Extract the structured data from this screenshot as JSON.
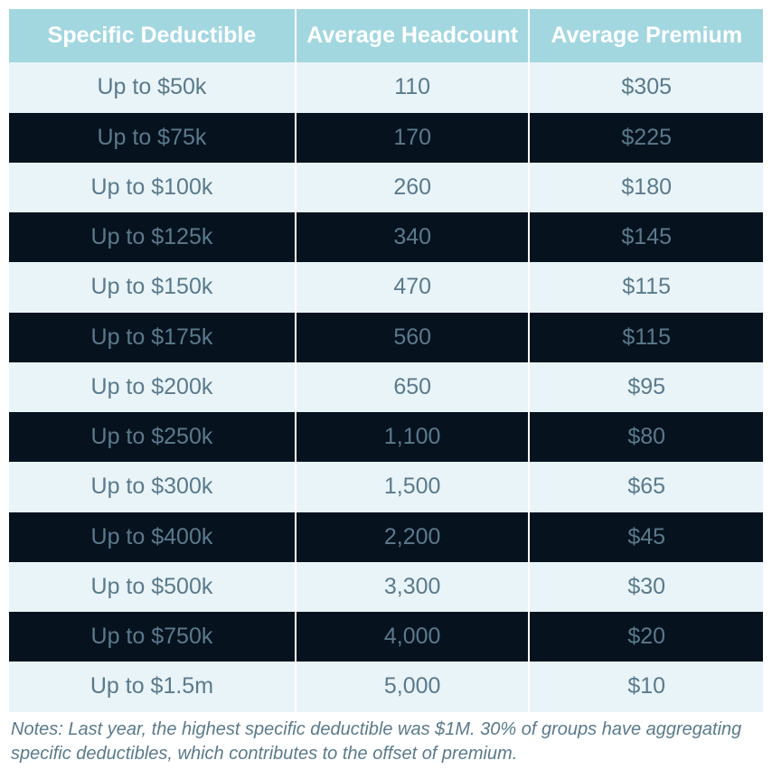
{
  "table": {
    "type": "table",
    "background_color": "#ffffff",
    "header": {
      "background_color": "#a3d7e0",
      "text_color": "#ffffff",
      "font_size_pt": 19,
      "font_weight": 700,
      "row_border_color": "#ffffff"
    },
    "columns": [
      {
        "key": "deductible",
        "label": "Specific Deductible",
        "width_pct": 38,
        "align": "center"
      },
      {
        "key": "headcount",
        "label": "Average Headcount",
        "width_pct": 31,
        "align": "center"
      },
      {
        "key": "premium",
        "label": "Average Premium",
        "width_pct": 31,
        "align": "center"
      }
    ],
    "body": {
      "font_size_pt": 19,
      "text_color": "#5a7a8c",
      "row_colors": {
        "light": "#e9f4f8",
        "dark": "#07121f"
      },
      "cell_border_color": "#ffffff"
    },
    "rows": [
      {
        "deductible": "Up to $50k",
        "headcount": "110",
        "premium": "$305"
      },
      {
        "deductible": "Up to $75k",
        "headcount": "170",
        "premium": "$225"
      },
      {
        "deductible": "Up to $100k",
        "headcount": "260",
        "premium": "$180"
      },
      {
        "deductible": "Up to $125k",
        "headcount": "340",
        "premium": "$145"
      },
      {
        "deductible": "Up to $150k",
        "headcount": "470",
        "premium": "$115"
      },
      {
        "deductible": "Up to $175k",
        "headcount": "560",
        "premium": "$115"
      },
      {
        "deductible": "Up to $200k",
        "headcount": "650",
        "premium": "$95"
      },
      {
        "deductible": "Up to $250k",
        "headcount": "1,100",
        "premium": "$80"
      },
      {
        "deductible": "Up to $300k",
        "headcount": "1,500",
        "premium": "$65"
      },
      {
        "deductible": "Up to $400k",
        "headcount": "2,200",
        "premium": "$45"
      },
      {
        "deductible": "Up to $500k",
        "headcount": "3,300",
        "premium": "$30"
      },
      {
        "deductible": "Up to $750k",
        "headcount": "4,000",
        "premium": "$20"
      },
      {
        "deductible": "Up to $1.5m",
        "headcount": "5,000",
        "premium": "$10"
      }
    ]
  },
  "notes": {
    "text": "Notes: Last year, the highest specific deductible was $1M. 30% of groups have aggregating specific deductibles, which contributes to the offset of premium.",
    "font_size_pt": 15,
    "font_style": "italic",
    "text_color": "#5a7a8c"
  }
}
